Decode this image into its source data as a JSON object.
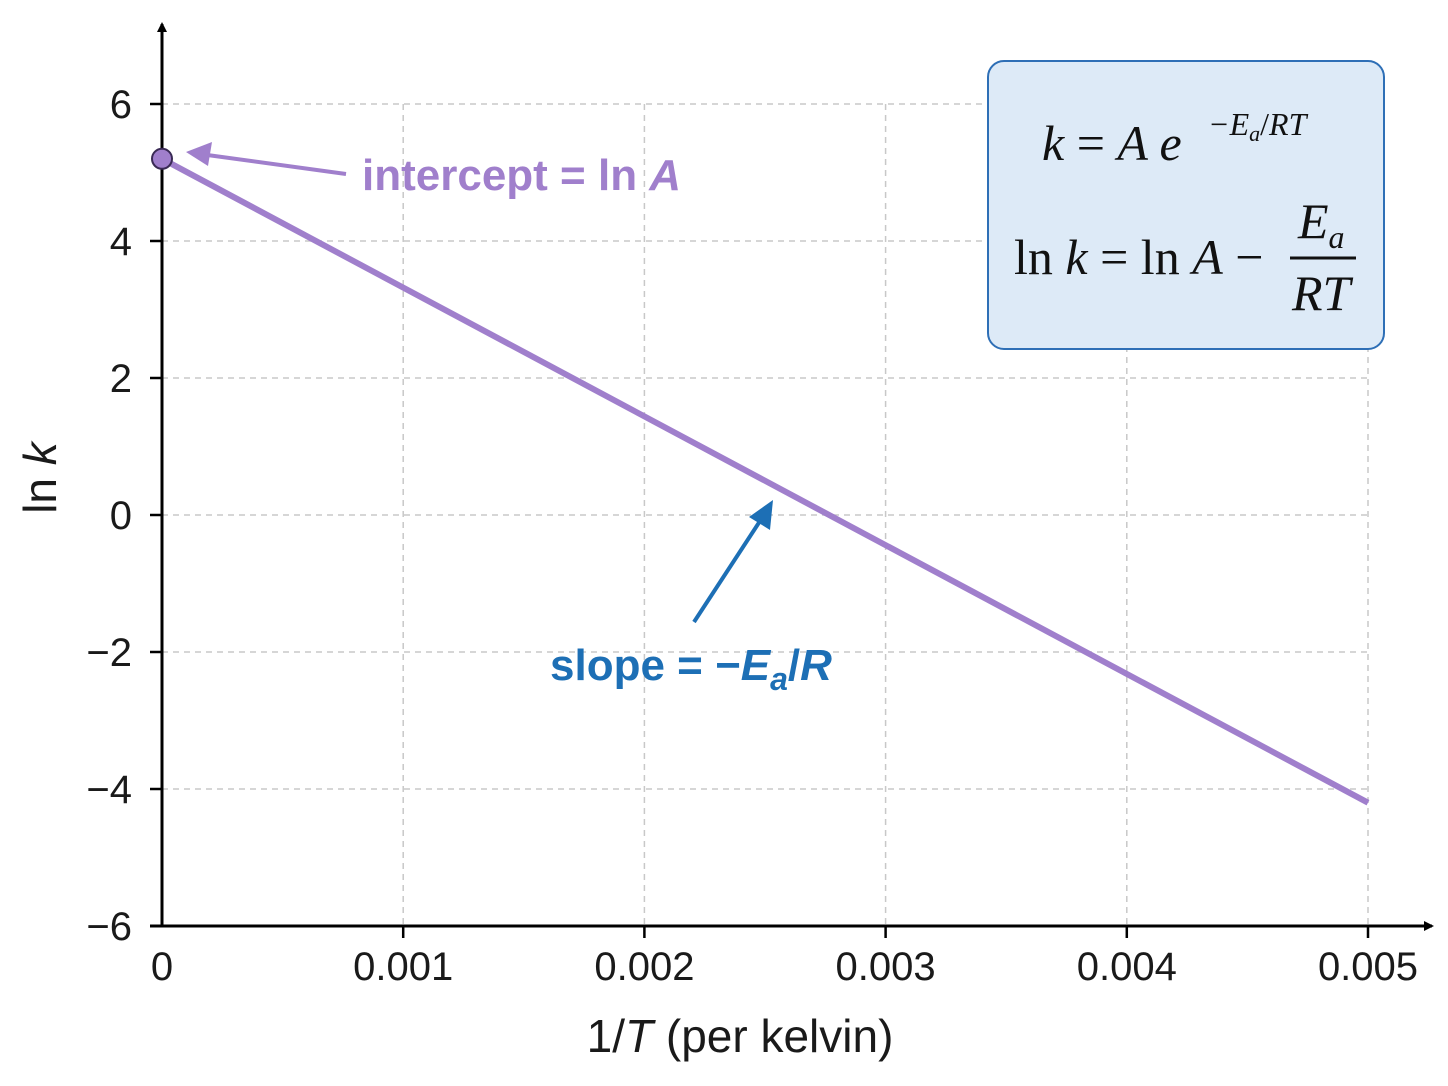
{
  "chart_data": {
    "type": "line",
    "xlabel_parts": [
      "1/",
      "T",
      " (per kelvin)"
    ],
    "ylabel_parts": [
      "ln ",
      "k"
    ],
    "xlim": [
      0,
      0.005
    ],
    "ylim": [
      -6,
      7
    ],
    "xticks": [
      0,
      0.001,
      0.002,
      0.003,
      0.004,
      0.005
    ],
    "xtick_labels": [
      "0",
      "0.001",
      "0.002",
      "0.003",
      "0.004",
      "0.005"
    ],
    "yticks": [
      6,
      4,
      2,
      0,
      -2,
      -4,
      -6
    ],
    "ytick_labels": [
      "6",
      "4",
      "2",
      "0",
      "−2",
      "−4",
      "−6"
    ],
    "grid": true,
    "series": [
      {
        "x": [
          0,
          0.005
        ],
        "y": [
          5.2,
          -4.2
        ],
        "color": "#a07fcc"
      }
    ],
    "intercept_point": {
      "x": 0,
      "y": 5.2
    },
    "annotations": {
      "intercept": {
        "text_parts": [
          "intercept = ln ",
          "A"
        ],
        "color": "#a07fcc"
      },
      "slope": {
        "text_parts": [
          "slope = −",
          "E",
          "a",
          "/",
          "R"
        ],
        "color": "#1d6fb5"
      }
    },
    "equations": {
      "eq1_parts": [
        "k",
        " = ",
        "A",
        " e",
        "−",
        "E",
        "a",
        "/",
        "RT"
      ],
      "eq2_parts": [
        "ln ",
        "k",
        " = ln ",
        "A",
        " − ",
        "E",
        "a",
        "RT"
      ],
      "box_fill": "#ddeaf7",
      "box_stroke": "#2e6fb6"
    }
  }
}
